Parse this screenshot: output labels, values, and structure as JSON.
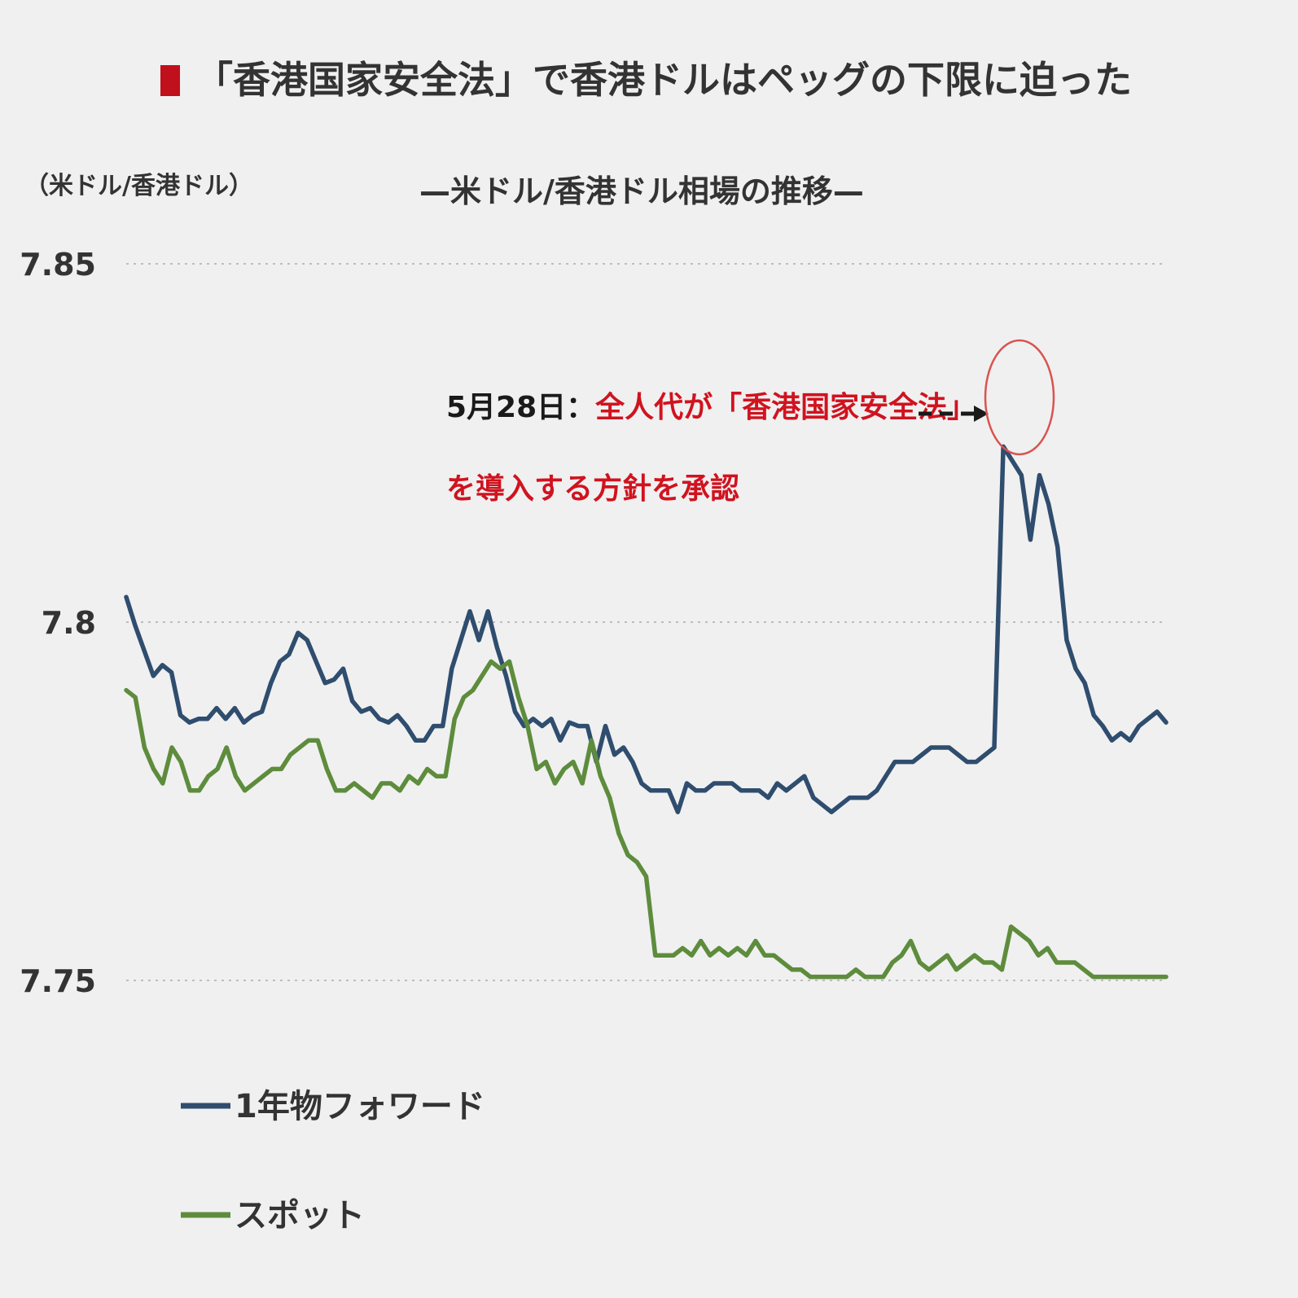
{
  "title": "「香港国家安全法」で香港ドルはペッグの下限に迫った",
  "subtitle": "—米ドル/香港ドル相場の推移—",
  "unit_label": "（米ドル/香港ドル）",
  "annotation": {
    "date": "5月28日：",
    "line1": "全人代が「香港国家安全法」",
    "line2": "を導入する方針を承認"
  },
  "colors": {
    "title_marker": "#c0101b",
    "forward": "#2f4d6e",
    "spot": "#5e8c3d",
    "annotation_red": "#d0131f",
    "circle": "#d9534f"
  },
  "chart_data": {
    "type": "line",
    "ylim": [
      7.75,
      7.85
    ],
    "yticks": [
      "7.75",
      "7.8",
      "7.85"
    ],
    "grid": "horizontal dotted",
    "legend_position": "bottom-left",
    "series": [
      {
        "name": "1年物フォワード",
        "values": [
          7.8035,
          7.7995,
          7.796,
          7.7925,
          7.794,
          7.793,
          7.787,
          7.786,
          7.7865,
          7.7865,
          7.788,
          7.7865,
          7.788,
          7.786,
          7.787,
          7.7875,
          7.7915,
          7.7945,
          7.7955,
          7.7985,
          7.7975,
          7.7945,
          7.7915,
          7.792,
          7.7935,
          7.789,
          7.7875,
          7.788,
          7.7865,
          7.786,
          7.787,
          7.7855,
          7.7835,
          7.7835,
          7.7855,
          7.7855,
          7.7935,
          7.7975,
          7.8015,
          7.7975,
          7.8015,
          7.7965,
          7.7925,
          7.7875,
          7.7855,
          7.7865,
          7.7855,
          7.7865,
          7.7835,
          7.786,
          7.7855,
          7.7855,
          7.7805,
          7.7855,
          7.7815,
          7.7825,
          7.7805,
          7.7775,
          7.7765,
          7.7765,
          7.7765,
          7.7735,
          7.7775,
          7.7765,
          7.7765,
          7.7775,
          7.7775,
          7.7775,
          7.7765,
          7.7765,
          7.7765,
          7.7755,
          7.7775,
          7.7765,
          7.7775,
          7.7785,
          7.7755,
          7.7745,
          7.7735,
          7.7745,
          7.7755,
          7.7755,
          7.7755,
          7.7765,
          7.7785,
          7.7805,
          7.7805,
          7.7805,
          7.7815,
          7.7825,
          7.7825,
          7.7825,
          7.7815,
          7.7805,
          7.7805,
          7.7815,
          7.7825,
          7.8245,
          7.8225,
          7.8205,
          7.8115,
          7.8205,
          7.8165,
          7.8105,
          7.7975,
          7.7935,
          7.7915,
          7.787,
          7.7855,
          7.7835,
          7.7845,
          7.7835,
          7.7855,
          7.7865,
          7.7875,
          7.786
        ],
        "color": "#2f4d6e"
      },
      {
        "name": "スポット",
        "values": [
          7.7905,
          7.7895,
          7.7825,
          7.7795,
          7.7775,
          7.7825,
          7.7805,
          7.7765,
          7.7765,
          7.7785,
          7.7795,
          7.7825,
          7.7785,
          7.7765,
          7.7775,
          7.7785,
          7.7795,
          7.7795,
          7.7815,
          7.7825,
          7.7835,
          7.7835,
          7.7795,
          7.7765,
          7.7765,
          7.7775,
          7.7765,
          7.7755,
          7.7775,
          7.7775,
          7.7765,
          7.7785,
          7.7775,
          7.7795,
          7.7785,
          7.7785,
          7.7865,
          7.7895,
          7.7905,
          7.7925,
          7.7945,
          7.7935,
          7.7945,
          7.7895,
          7.7855,
          7.7795,
          7.7805,
          7.7775,
          7.7795,
          7.7805,
          7.7775,
          7.7835,
          7.7785,
          7.7755,
          7.7705,
          7.7675,
          7.7665,
          7.7645,
          7.7535,
          7.7535,
          7.7535,
          7.7545,
          7.7535,
          7.7555,
          7.7535,
          7.7545,
          7.7535,
          7.7545,
          7.7535,
          7.7555,
          7.7535,
          7.7535,
          7.7525,
          7.7515,
          7.7515,
          7.7505,
          7.7505,
          7.7505,
          7.7505,
          7.7505,
          7.7515,
          7.7505,
          7.7505,
          7.7505,
          7.7525,
          7.7535,
          7.7555,
          7.7525,
          7.7515,
          7.7525,
          7.7535,
          7.7515,
          7.7525,
          7.7535,
          7.7525,
          7.7525,
          7.7515,
          7.7575,
          7.7565,
          7.7555,
          7.7535,
          7.7545,
          7.7525,
          7.7525,
          7.7525,
          7.7515,
          7.7505,
          7.7505,
          7.7505,
          7.7505,
          7.7505,
          7.7505,
          7.7505,
          7.7505,
          7.7505
        ],
        "color": "#5e8c3d"
      }
    ]
  },
  "legend": [
    {
      "label": "1年物フォワード"
    },
    {
      "label": "スポット"
    }
  ]
}
